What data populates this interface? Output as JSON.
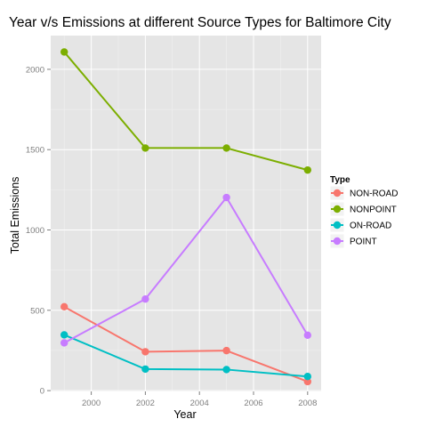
{
  "chart_data": {
    "type": "line",
    "title": "Year v/s Emissions at different Source Types for Baltimore City",
    "xlabel": "Year",
    "ylabel": "Total Emissions",
    "x": [
      1999,
      2002,
      2005,
      2008
    ],
    "xlim": [
      1998.5,
      2008.5
    ],
    "ylim": [
      -5,
      2210
    ],
    "x_ticks": [
      2000,
      2002,
      2004,
      2006,
      2008
    ],
    "y_ticks": [
      0,
      500,
      1000,
      1500,
      2000
    ],
    "x_tick_labels": [
      "2000",
      "2002",
      "2004",
      "2006",
      "2008"
    ],
    "y_tick_labels": [
      "0",
      "500",
      "1000",
      "1500",
      "2000"
    ],
    "grid": true,
    "legend_position": "right",
    "legend_title": "Type",
    "series": [
      {
        "name": "NON-ROAD",
        "color": "#F8766D",
        "values": [
          522,
          242,
          249,
          56
        ]
      },
      {
        "name": "NONPOINT",
        "color": "#7CAE00",
        "values": [
          2108,
          1510,
          1510,
          1373
        ]
      },
      {
        "name": "ON-ROAD",
        "color": "#00BFC4",
        "values": [
          347,
          134,
          131,
          88
        ]
      },
      {
        "name": "POINT",
        "color": "#C77CFF",
        "values": [
          297,
          570,
          1202,
          345
        ]
      }
    ]
  }
}
